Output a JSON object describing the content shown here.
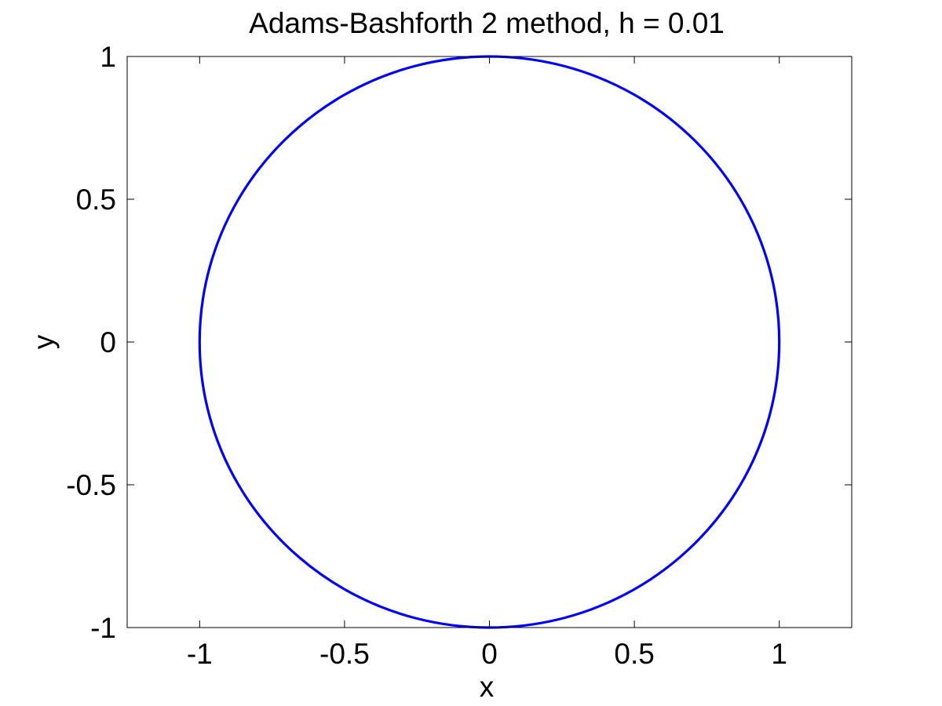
{
  "chart_data": {
    "type": "line",
    "title": "Adams-Bashforth 2 method, h = 0.01",
    "xlabel": "x",
    "ylabel": "y",
    "xlim": [
      -1.25,
      1.25
    ],
    "ylim": [
      -1,
      1
    ],
    "xticks": [
      {
        "value": -1,
        "label": "-1"
      },
      {
        "value": -0.5,
        "label": "-0.5"
      },
      {
        "value": 0,
        "label": "0"
      },
      {
        "value": 0.5,
        "label": "0.5"
      },
      {
        "value": 1,
        "label": "1"
      }
    ],
    "yticks": [
      {
        "value": -1,
        "label": "-1"
      },
      {
        "value": -0.5,
        "label": "-0.5"
      },
      {
        "value": 0,
        "label": "0"
      },
      {
        "value": 0.5,
        "label": "0.5"
      },
      {
        "value": 1,
        "label": "1"
      }
    ],
    "grid": false,
    "legend": "none",
    "series": [
      {
        "color": "#0000ff",
        "shape": "unit circle",
        "x": [
          1,
          0.966,
          0.866,
          0.707,
          0.5,
          0.259,
          0,
          -0.259,
          -0.5,
          -0.707,
          -0.866,
          -0.966,
          -1,
          -0.966,
          -0.866,
          -0.707,
          -0.5,
          -0.259,
          0,
          0.259,
          0.5,
          0.707,
          0.866,
          0.966,
          1
        ],
        "y": [
          0,
          0.259,
          0.5,
          0.707,
          0.866,
          0.966,
          1,
          0.966,
          0.866,
          0.707,
          0.5,
          0.259,
          0,
          -0.259,
          -0.5,
          -0.707,
          -0.866,
          -0.966,
          -1,
          -0.966,
          -0.866,
          -0.707,
          -0.5,
          -0.259,
          0
        ]
      }
    ]
  }
}
